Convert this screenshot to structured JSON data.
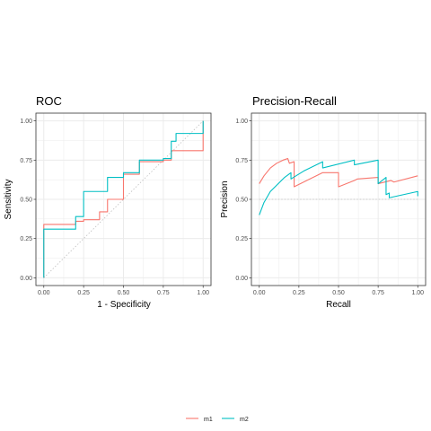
{
  "colors": {
    "m1": "#F8766D",
    "m2": "#00BFC4",
    "grid": "#ebebeb",
    "border": "#333333",
    "ref": "#bfbfbf"
  },
  "legend": {
    "items": [
      {
        "name": "m1",
        "color": "#F8766D"
      },
      {
        "name": "m2",
        "color": "#00BFC4"
      }
    ],
    "position": "bottom"
  },
  "chart_data": [
    {
      "type": "line",
      "title": "ROC",
      "xlabel": "1 - Specificity",
      "ylabel": "Sensitivity",
      "xlim": [
        0,
        1
      ],
      "ylim": [
        0,
        1
      ],
      "xticks": [
        "0.00",
        "0.25",
        "0.50",
        "0.75",
        "1.00"
      ],
      "yticks": [
        "0.00",
        "0.25",
        "0.50",
        "0.75",
        "1.00"
      ],
      "grid": true,
      "reference": {
        "type": "diagonal",
        "from": [
          0,
          0
        ],
        "to": [
          1,
          1
        ]
      },
      "series": [
        {
          "name": "m1",
          "x": [
            0,
            0,
            0.2,
            0.2,
            0.25,
            0.25,
            0.35,
            0.35,
            0.4,
            0.4,
            0.5,
            0.5,
            0.6,
            0.6,
            0.75,
            0.75,
            0.8,
            0.8,
            1.0,
            1.0
          ],
          "y": [
            0,
            0.34,
            0.34,
            0.36,
            0.36,
            0.37,
            0.37,
            0.42,
            0.42,
            0.5,
            0.5,
            0.66,
            0.66,
            0.74,
            0.74,
            0.75,
            0.75,
            0.81,
            0.81,
            1.0
          ]
        },
        {
          "name": "m2",
          "x": [
            0,
            0,
            0.2,
            0.2,
            0.25,
            0.25,
            0.4,
            0.4,
            0.5,
            0.5,
            0.6,
            0.6,
            0.75,
            0.75,
            0.8,
            0.8,
            0.83,
            0.83,
            1.0,
            1.0
          ],
          "y": [
            0,
            0.31,
            0.31,
            0.39,
            0.39,
            0.55,
            0.55,
            0.64,
            0.64,
            0.67,
            0.67,
            0.75,
            0.75,
            0.76,
            0.76,
            0.87,
            0.87,
            0.92,
            0.92,
            1.0
          ]
        }
      ]
    },
    {
      "type": "line",
      "title": "Precision-Recall",
      "xlabel": "Recall",
      "ylabel": "Precision",
      "xlim": [
        0,
        1
      ],
      "ylim": [
        0,
        1
      ],
      "xticks": [
        "0.00",
        "0.25",
        "0.50",
        "0.75",
        "1.00"
      ],
      "yticks": [
        "0.00",
        "0.25",
        "0.50",
        "0.75",
        "1.00"
      ],
      "grid": true,
      "reference": {
        "type": "horizontal",
        "y": 0.5
      },
      "series": [
        {
          "name": "m1",
          "x": [
            0,
            0.03,
            0.07,
            0.11,
            0.15,
            0.18,
            0.19,
            0.22,
            0.22,
            0.3,
            0.4,
            0.5,
            0.5,
            0.6,
            0.62,
            0.75,
            0.75,
            0.83,
            0.85,
            1.0
          ],
          "y": [
            0.6,
            0.65,
            0.7,
            0.73,
            0.75,
            0.76,
            0.73,
            0.74,
            0.58,
            0.62,
            0.67,
            0.67,
            0.58,
            0.62,
            0.63,
            0.64,
            0.6,
            0.62,
            0.61,
            0.65
          ]
        },
        {
          "name": "m2",
          "x": [
            0,
            0.03,
            0.07,
            0.12,
            0.16,
            0.2,
            0.2,
            0.28,
            0.4,
            0.4,
            0.6,
            0.6,
            0.75,
            0.75,
            0.8,
            0.8,
            0.82,
            0.82,
            1.0,
            1.0
          ],
          "y": [
            0.4,
            0.48,
            0.55,
            0.6,
            0.64,
            0.67,
            0.63,
            0.68,
            0.74,
            0.7,
            0.75,
            0.72,
            0.75,
            0.6,
            0.64,
            0.53,
            0.54,
            0.51,
            0.55,
            0.52
          ]
        }
      ]
    }
  ]
}
